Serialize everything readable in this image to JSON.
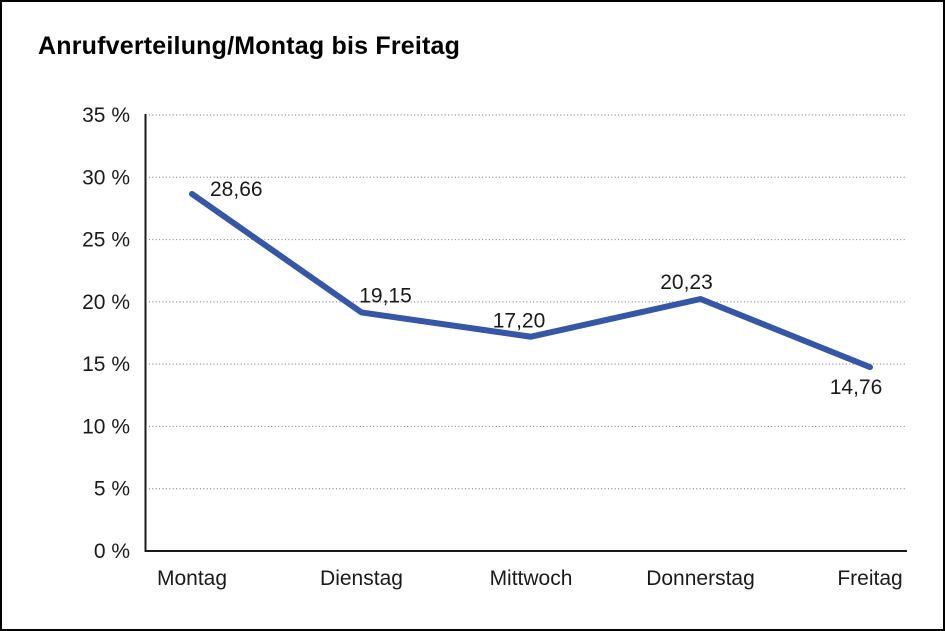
{
  "chart_data": {
    "type": "line",
    "title": "Anrufverteilung/Montag bis Freitag",
    "categories": [
      "Montag",
      "Dienstag",
      "Mittwoch",
      "Donnerstag",
      "Freitag"
    ],
    "series": [
      {
        "name": "Anrufverteilung",
        "values": [
          28.66,
          19.15,
          17.2,
          20.23,
          14.76
        ],
        "value_labels": [
          "28,66",
          "19,15",
          "17,20",
          "20,23",
          "14,76"
        ]
      }
    ],
    "xlabel": "",
    "ylabel": "",
    "ylim": [
      0,
      35
    ],
    "ytick_step": 5,
    "ytick_labels": [
      "0 %",
      "5 %",
      "10 %",
      "15 %",
      "20 %",
      "25 %",
      "30 %",
      "35 %"
    ],
    "grid": "horizontal-dotted",
    "legend": "none",
    "line_color": "#3657A5",
    "grid_color": "#8a8a8a",
    "axis_color": "#1a1a1a"
  }
}
